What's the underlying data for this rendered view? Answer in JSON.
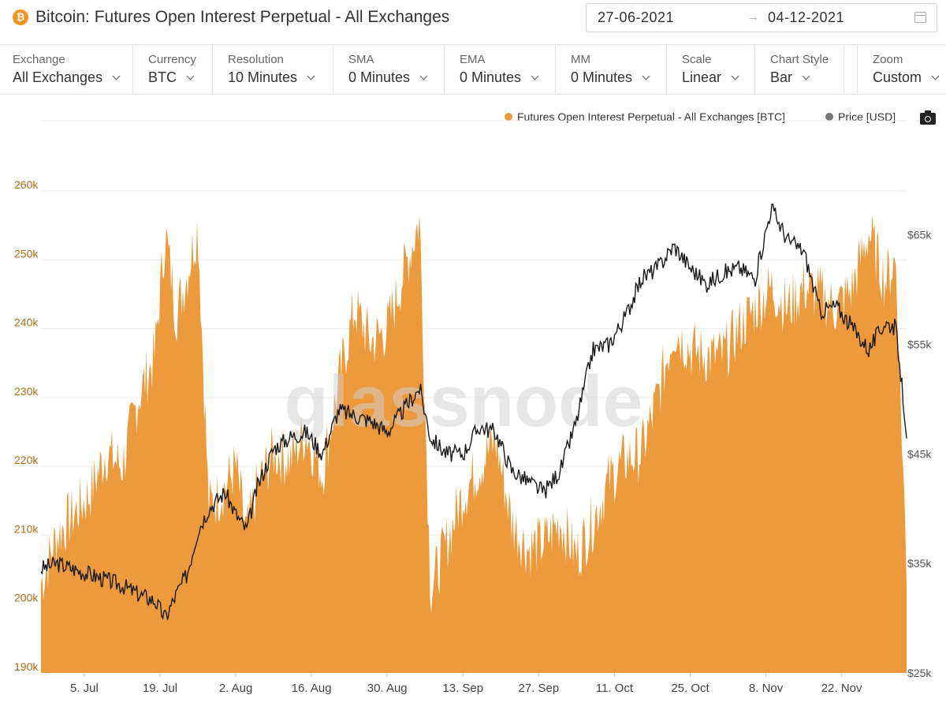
{
  "header": {
    "icon": "bitcoin-icon",
    "title": "Bitcoin: Futures Open Interest Perpetual - All Exchanges",
    "date_from": "27-06-2021",
    "date_arrow": "→",
    "date_to": "04-12-2021",
    "calendar_icon": "calendar-icon"
  },
  "controls": [
    {
      "label": "Exchange",
      "value": "All Exchanges"
    },
    {
      "label": "Currency",
      "value": "BTC"
    },
    {
      "label": "Resolution",
      "value": "10 Minutes"
    },
    {
      "label": "SMA",
      "value": "0 Minutes"
    },
    {
      "label": "EMA",
      "value": "0 Minutes"
    },
    {
      "label": "MM",
      "value": "0 Minutes"
    },
    {
      "label": "Scale",
      "value": "Linear"
    },
    {
      "label": "Chart Style",
      "value": "Bar"
    },
    {
      "label": "Zoom",
      "value": "Custom"
    }
  ],
  "legend": {
    "oi_label": "Futures Open Interest Perpetual - All Exchanges [BTC]",
    "price_label": "Price [USD]",
    "camera_icon": "camera-icon"
  },
  "watermark": "glassnode",
  "colors": {
    "oi": "#ec9a3c",
    "price": "#1a1a1a",
    "left_axis_text": "#b36e12",
    "bitcoin": "#f7931a"
  },
  "chart_data": {
    "type": "area",
    "x_tick_labels": [
      "5. Jul",
      "19. Jul",
      "2. Aug",
      "16. Aug",
      "30. Aug",
      "13. Sep",
      "27. Sep",
      "11. Oct",
      "25. Oct",
      "8. Nov",
      "22. Nov"
    ],
    "y_left_ticks": [
      "190k",
      "200k",
      "210k",
      "220k",
      "230k",
      "240k",
      "250k",
      "260k"
    ],
    "y_left_range": [
      190000,
      260000
    ],
    "y_right_ticks": [
      "$25k",
      "$35k",
      "$45k",
      "$55k",
      "$65k"
    ],
    "y_right_range": [
      25000,
      69000
    ],
    "series": [
      {
        "name": "Futures Open Interest Perpetual - All Exchanges [BTC]",
        "axis": "left",
        "points": [
          [
            "2021-06-27",
            203000
          ],
          [
            "2021-06-30",
            210000
          ],
          [
            "2021-07-03",
            213000
          ],
          [
            "2021-07-06",
            216000
          ],
          [
            "2021-07-09",
            222000
          ],
          [
            "2021-07-12",
            220000
          ],
          [
            "2021-07-15",
            230000
          ],
          [
            "2021-07-18",
            236000
          ],
          [
            "2021-07-20",
            254000
          ],
          [
            "2021-07-22",
            242000
          ],
          [
            "2021-07-24",
            248000
          ],
          [
            "2021-07-26",
            255000
          ],
          [
            "2021-07-28",
            214000
          ],
          [
            "2021-07-31",
            217000
          ],
          [
            "2021-08-02",
            220000
          ],
          [
            "2021-08-04",
            210000
          ],
          [
            "2021-08-06",
            217000
          ],
          [
            "2021-08-09",
            222000
          ],
          [
            "2021-08-12",
            221000
          ],
          [
            "2021-08-15",
            225000
          ],
          [
            "2021-08-18",
            219000
          ],
          [
            "2021-08-21",
            232000
          ],
          [
            "2021-08-24",
            243000
          ],
          [
            "2021-08-27",
            238000
          ],
          [
            "2021-08-30",
            240000
          ],
          [
            "2021-09-02",
            248000
          ],
          [
            "2021-09-05",
            256000
          ],
          [
            "2021-09-07",
            202000
          ],
          [
            "2021-09-10",
            209000
          ],
          [
            "2021-09-13",
            216000
          ],
          [
            "2021-09-16",
            220000
          ],
          [
            "2021-09-19",
            224000
          ],
          [
            "2021-09-22",
            212000
          ],
          [
            "2021-09-25",
            208000
          ],
          [
            "2021-09-28",
            209000
          ],
          [
            "2021-10-01",
            212000
          ],
          [
            "2021-10-04",
            207000
          ],
          [
            "2021-10-07",
            212000
          ],
          [
            "2021-10-10",
            218000
          ],
          [
            "2021-10-13",
            221000
          ],
          [
            "2021-10-16",
            222000
          ],
          [
            "2021-10-19",
            230000
          ],
          [
            "2021-10-22",
            240000
          ],
          [
            "2021-10-25",
            237000
          ],
          [
            "2021-10-28",
            236000
          ],
          [
            "2021-10-31",
            236000
          ],
          [
            "2021-11-03",
            240000
          ],
          [
            "2021-11-06",
            243000
          ],
          [
            "2021-11-09",
            246000
          ],
          [
            "2021-11-12",
            243000
          ],
          [
            "2021-11-15",
            246000
          ],
          [
            "2021-11-18",
            245000
          ],
          [
            "2021-11-21",
            243000
          ],
          [
            "2021-11-24",
            246000
          ],
          [
            "2021-11-27",
            254000
          ],
          [
            "2021-11-30",
            247000
          ],
          [
            "2021-12-02",
            250000
          ],
          [
            "2021-12-04",
            205000
          ]
        ]
      },
      {
        "name": "Price [USD]",
        "axis": "right",
        "points": [
          [
            "2021-06-27",
            34500
          ],
          [
            "2021-06-30",
            35000
          ],
          [
            "2021-07-03",
            34500
          ],
          [
            "2021-07-06",
            34000
          ],
          [
            "2021-07-09",
            33500
          ],
          [
            "2021-07-12",
            33000
          ],
          [
            "2021-07-15",
            32200
          ],
          [
            "2021-07-18",
            31600
          ],
          [
            "2021-07-20",
            30000
          ],
          [
            "2021-07-22",
            32200
          ],
          [
            "2021-07-24",
            34000
          ],
          [
            "2021-07-26",
            38000
          ],
          [
            "2021-07-28",
            40000
          ],
          [
            "2021-07-31",
            41500
          ],
          [
            "2021-08-02",
            39500
          ],
          [
            "2021-08-04",
            38000
          ],
          [
            "2021-08-06",
            42000
          ],
          [
            "2021-08-09",
            45500
          ],
          [
            "2021-08-12",
            46500
          ],
          [
            "2021-08-15",
            47000
          ],
          [
            "2021-08-18",
            45000
          ],
          [
            "2021-08-21",
            49000
          ],
          [
            "2021-08-24",
            48500
          ],
          [
            "2021-08-27",
            48000
          ],
          [
            "2021-08-30",
            47000
          ],
          [
            "2021-09-02",
            49000
          ],
          [
            "2021-09-05",
            51000
          ],
          [
            "2021-09-07",
            46500
          ],
          [
            "2021-09-10",
            45000
          ],
          [
            "2021-09-13",
            45000
          ],
          [
            "2021-09-16",
            47500
          ],
          [
            "2021-09-19",
            47000
          ],
          [
            "2021-09-22",
            43500
          ],
          [
            "2021-09-25",
            42500
          ],
          [
            "2021-09-28",
            41500
          ],
          [
            "2021-10-01",
            43500
          ],
          [
            "2021-10-04",
            48000
          ],
          [
            "2021-10-07",
            54500
          ],
          [
            "2021-10-10",
            55000
          ],
          [
            "2021-10-13",
            57500
          ],
          [
            "2021-10-16",
            61000
          ],
          [
            "2021-10-19",
            62000
          ],
          [
            "2021-10-22",
            64000
          ],
          [
            "2021-10-25",
            62000
          ],
          [
            "2021-10-28",
            60500
          ],
          [
            "2021-10-31",
            61500
          ],
          [
            "2021-11-03",
            62000
          ],
          [
            "2021-11-06",
            61000
          ],
          [
            "2021-11-09",
            67500
          ],
          [
            "2021-11-12",
            64500
          ],
          [
            "2021-11-15",
            63500
          ],
          [
            "2021-11-18",
            58000
          ],
          [
            "2021-11-21",
            58500
          ],
          [
            "2021-11-24",
            56500
          ],
          [
            "2021-11-27",
            54500
          ],
          [
            "2021-11-30",
            57000
          ],
          [
            "2021-12-02",
            56500
          ],
          [
            "2021-12-04",
            47000
          ]
        ]
      }
    ]
  }
}
